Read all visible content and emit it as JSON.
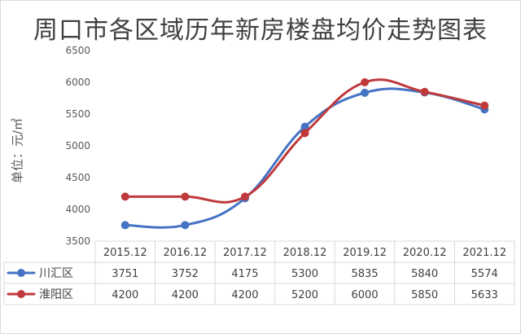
{
  "chart_data": {
    "type": "line",
    "title": "周口市各区域历年新房楼盘均价走势图表",
    "ylabel": "单位：元/㎡",
    "xlabel": "",
    "categories": [
      "2015.12",
      "2016.12",
      "2017.12",
      "2018.12",
      "2019.12",
      "2020.12",
      "2021.12"
    ],
    "yticks": [
      3500,
      4000,
      4500,
      5000,
      5500,
      6000,
      6500
    ],
    "ylim": [
      3500,
      6500
    ],
    "grid": false,
    "legend": "data-table-left",
    "series": [
      {
        "name": "川汇区",
        "color": "#4472c4",
        "values": [
          3751,
          3752,
          4175,
          5300,
          5835,
          5840,
          5574
        ]
      },
      {
        "name": "淮阳区",
        "color": "#c0393b",
        "values": [
          4200,
          4200,
          4200,
          5200,
          6000,
          5850,
          5633
        ]
      }
    ]
  }
}
